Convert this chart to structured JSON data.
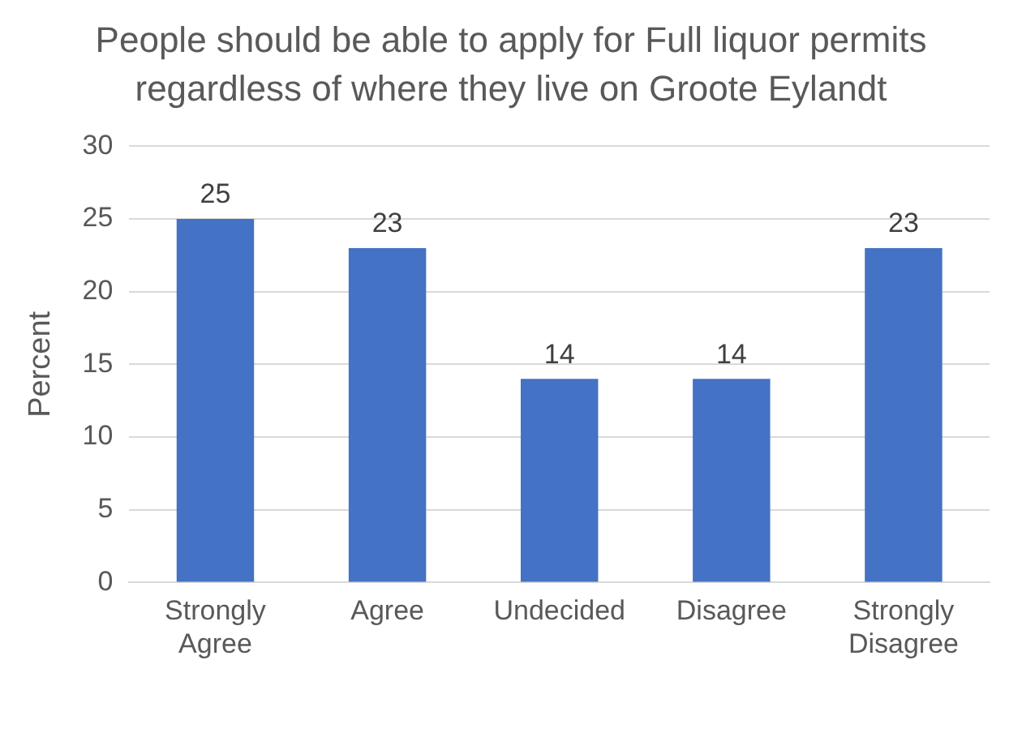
{
  "chart_data": {
    "type": "bar",
    "title": "People should be able to apply for Full liquor permits regardless of where they live on Groote Eylandt",
    "ylabel": "Percent",
    "categories": [
      "Strongly Agree",
      "Agree",
      "Undecided",
      "Disagree",
      "Strongly Disagree"
    ],
    "values": [
      25,
      23,
      14,
      14,
      23
    ],
    "color": "#4472c4",
    "ylim": [
      0,
      30
    ],
    "yticks": [
      0,
      5,
      10,
      15,
      20,
      25,
      30
    ],
    "grid": "y",
    "legend": false,
    "data_labels": true
  }
}
